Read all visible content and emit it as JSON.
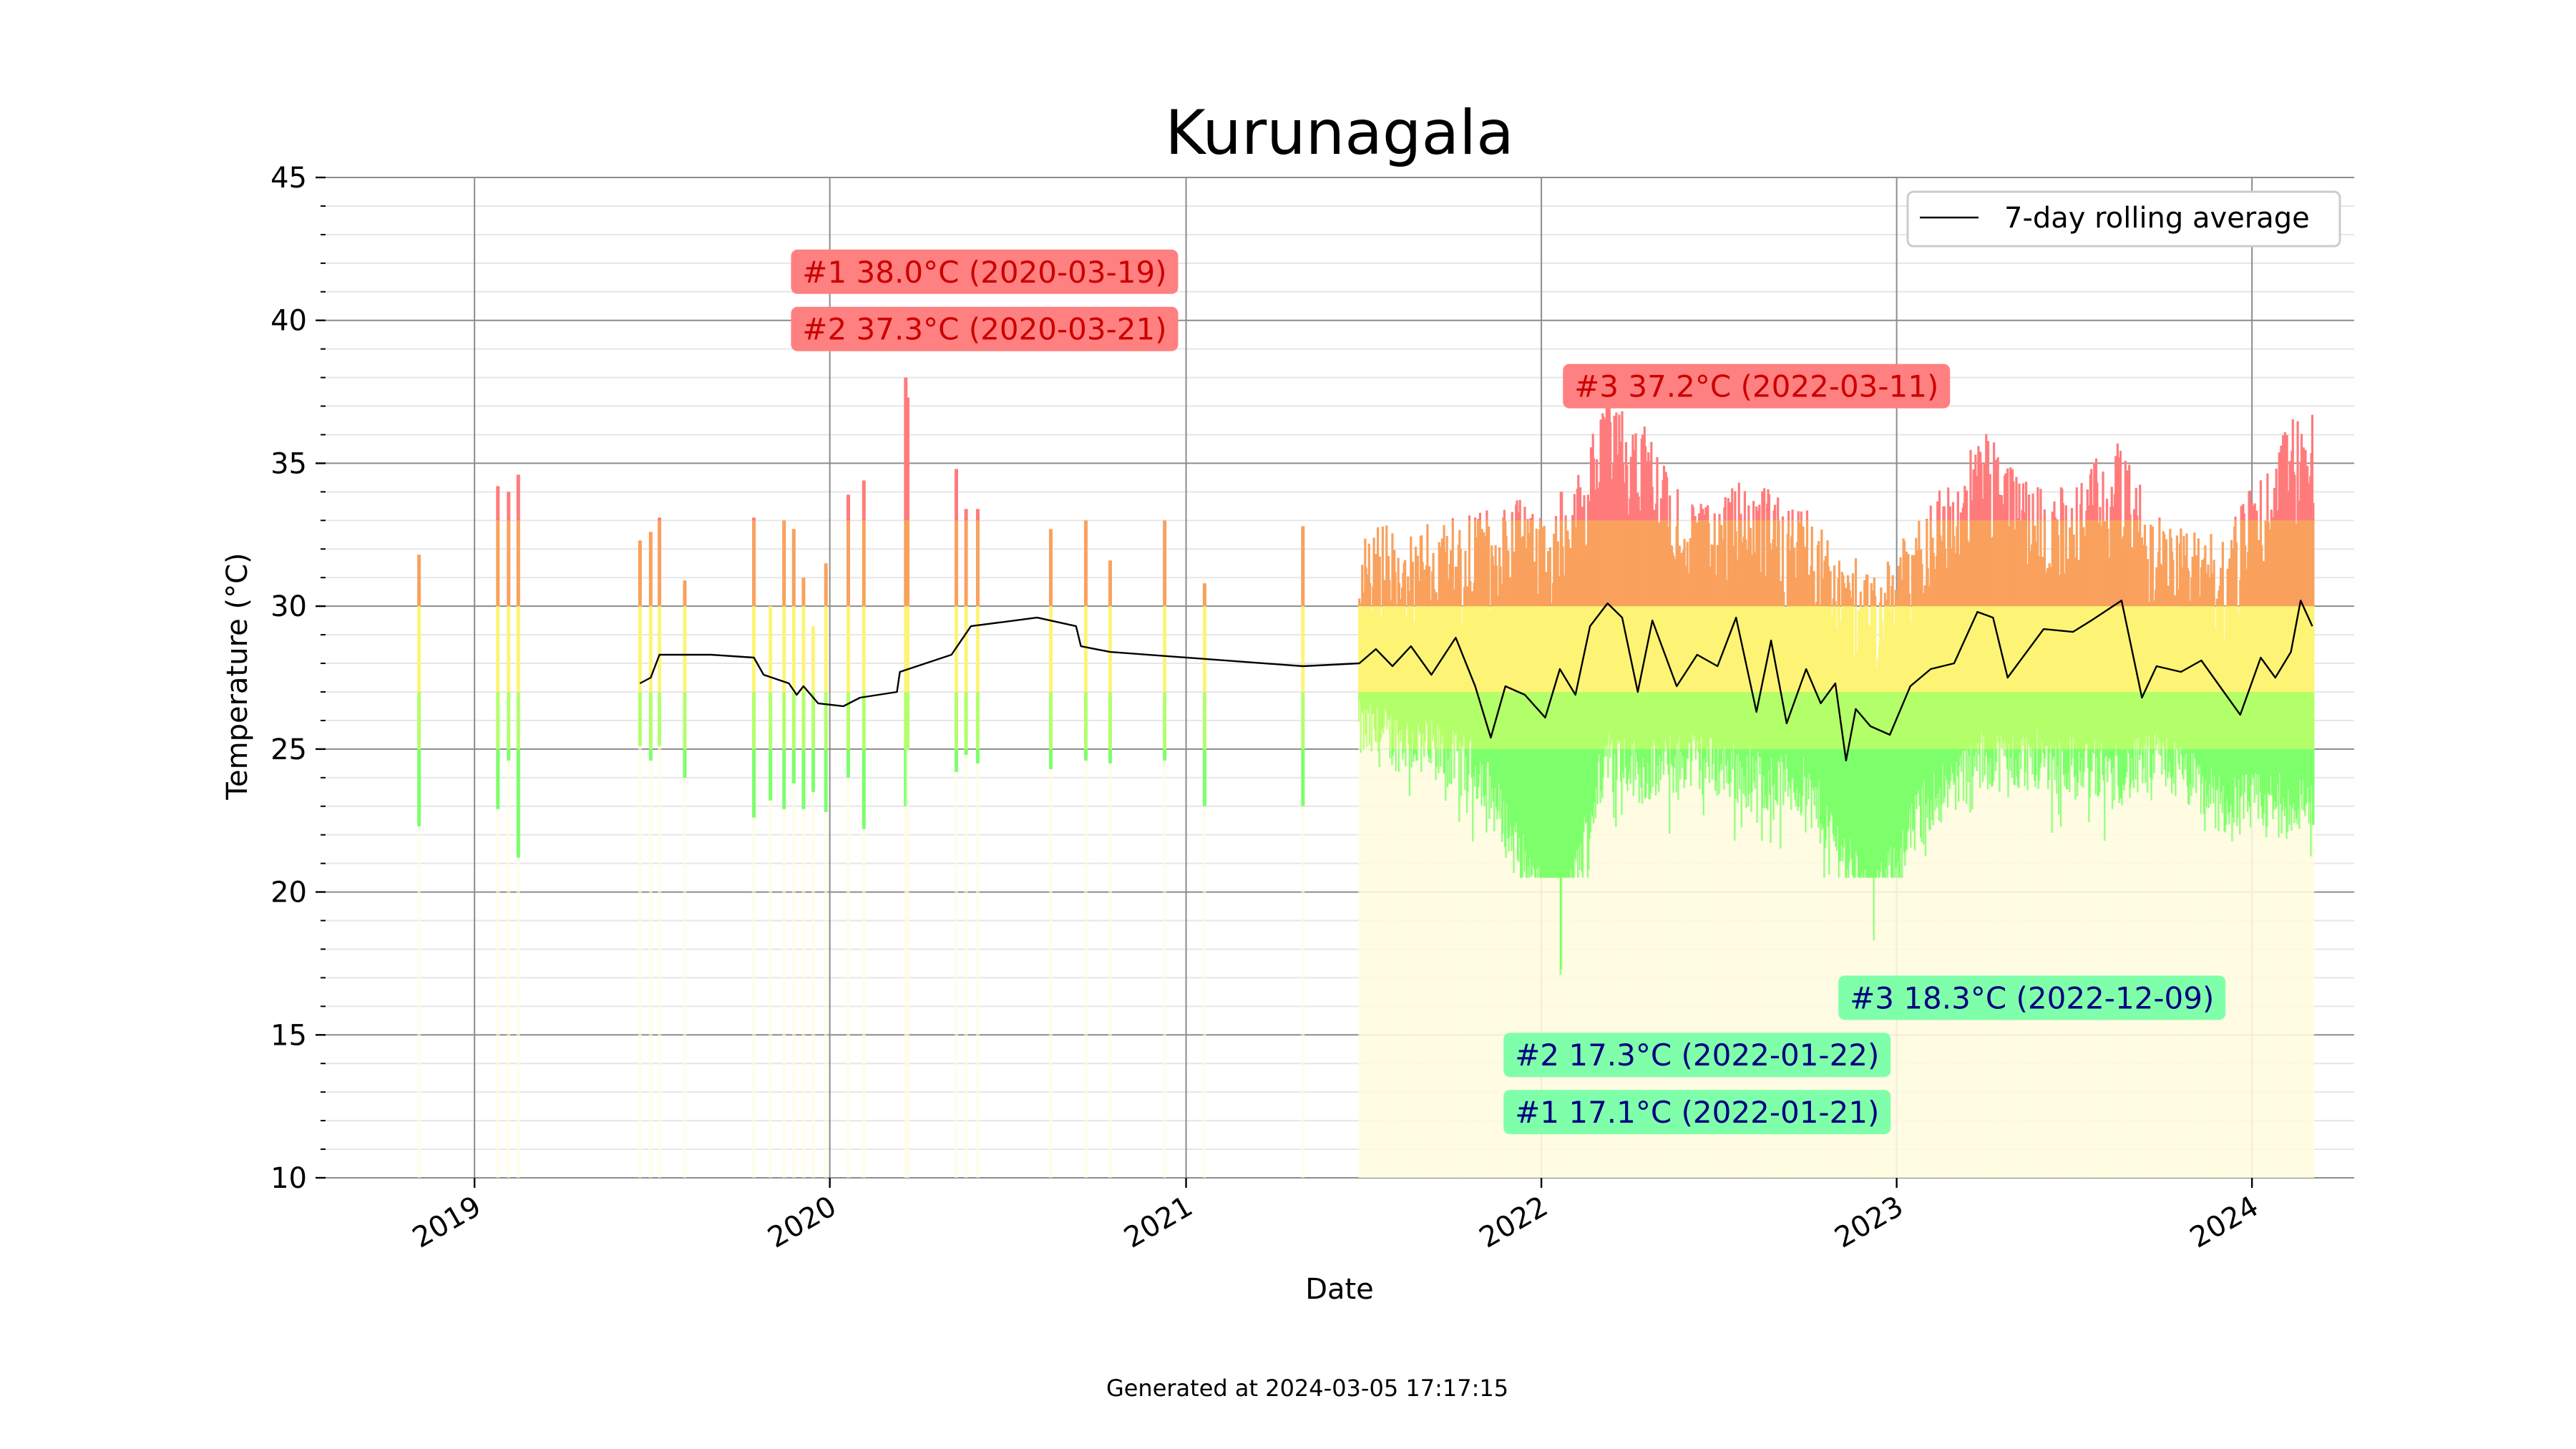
{
  "footer": "Generated at 2024-03-05 17:17:15",
  "colors": {
    "hot": "#ff7b7b",
    "warm": "#f9a15d",
    "mild": "#fdf476",
    "cool": "#b3ff6a",
    "cold": "#7cff6a",
    "rolling_line": "#000000",
    "hot_box": "#ff8080",
    "hot_text": "#cc0000",
    "cold_box": "#80ffaa",
    "cold_text": "#000080",
    "grid_major": "#8c8c8c",
    "grid_minor": "#e6e6e6"
  },
  "chart_data": {
    "type": "bar",
    "title": "Kurunagala",
    "xlabel": "Date",
    "ylabel": "Temperature (°C)",
    "ylim": [
      10,
      45
    ],
    "xlim": [
      "2018-08-01",
      "2024-04-15"
    ],
    "yticks": [
      10,
      15,
      20,
      25,
      30,
      35,
      40,
      45
    ],
    "xticks": [
      "2019",
      "2020",
      "2021",
      "2022",
      "2023",
      "2024"
    ],
    "grid": true,
    "legend": {
      "placement": "top-right",
      "entries": [
        "7-day rolling average"
      ]
    },
    "series": [
      {
        "name": "7-day rolling average",
        "kind": "line",
        "points": [
          [
            "2019-06-20",
            27.3
          ],
          [
            "2019-07-01",
            27.5
          ],
          [
            "2019-07-10",
            28.3
          ],
          [
            "2019-09-01",
            28.3
          ],
          [
            "2019-10-15",
            28.2
          ],
          [
            "2019-10-25",
            27.6
          ],
          [
            "2019-11-20",
            27.3
          ],
          [
            "2019-11-28",
            26.9
          ],
          [
            "2019-12-05",
            27.2
          ],
          [
            "2019-12-20",
            26.6
          ],
          [
            "2020-01-15",
            26.5
          ],
          [
            "2020-02-01",
            26.8
          ],
          [
            "2020-03-10",
            27.0
          ],
          [
            "2020-03-13",
            27.7
          ],
          [
            "2020-05-05",
            28.3
          ],
          [
            "2020-05-25",
            29.3
          ],
          [
            "2020-08-01",
            29.6
          ],
          [
            "2020-09-10",
            29.3
          ],
          [
            "2020-09-15",
            28.6
          ],
          [
            "2020-10-15",
            28.4
          ],
          [
            "2021-05-01",
            27.9
          ],
          [
            "2021-06-28",
            28.0
          ],
          [
            "2021-07-15",
            28.5
          ],
          [
            "2021-08-01",
            27.9
          ],
          [
            "2021-08-20",
            28.6
          ],
          [
            "2021-09-10",
            27.6
          ],
          [
            "2021-10-05",
            28.9
          ],
          [
            "2021-10-25",
            27.2
          ],
          [
            "2021-11-10",
            25.4
          ],
          [
            "2021-11-25",
            27.2
          ],
          [
            "2021-12-15",
            26.9
          ],
          [
            "2022-01-05",
            26.1
          ],
          [
            "2022-01-20",
            27.8
          ],
          [
            "2022-02-05",
            26.9
          ],
          [
            "2022-02-20",
            29.3
          ],
          [
            "2022-03-10",
            30.1
          ],
          [
            "2022-03-25",
            29.6
          ],
          [
            "2022-04-10",
            27.0
          ],
          [
            "2022-04-25",
            29.5
          ],
          [
            "2022-05-20",
            27.2
          ],
          [
            "2022-06-10",
            28.3
          ],
          [
            "2022-07-01",
            27.9
          ],
          [
            "2022-07-20",
            29.6
          ],
          [
            "2022-08-10",
            26.3
          ],
          [
            "2022-08-25",
            28.8
          ],
          [
            "2022-09-10",
            25.9
          ],
          [
            "2022-09-30",
            27.8
          ],
          [
            "2022-10-15",
            26.6
          ],
          [
            "2022-10-30",
            27.3
          ],
          [
            "2022-11-10",
            24.6
          ],
          [
            "2022-11-20",
            26.4
          ],
          [
            "2022-12-05",
            25.8
          ],
          [
            "2022-12-25",
            25.5
          ],
          [
            "2023-01-15",
            27.2
          ],
          [
            "2023-02-05",
            27.8
          ],
          [
            "2023-03-01",
            28.0
          ],
          [
            "2023-03-25",
            29.8
          ],
          [
            "2023-04-10",
            29.6
          ],
          [
            "2023-04-25",
            27.5
          ],
          [
            "2023-06-01",
            29.2
          ],
          [
            "2023-07-01",
            29.1
          ],
          [
            "2023-07-20",
            29.5
          ],
          [
            "2023-08-20",
            30.2
          ],
          [
            "2023-09-10",
            26.8
          ],
          [
            "2023-09-25",
            27.9
          ],
          [
            "2023-10-20",
            27.7
          ],
          [
            "2023-11-10",
            28.1
          ],
          [
            "2023-12-01",
            27.1
          ],
          [
            "2023-12-20",
            26.2
          ],
          [
            "2024-01-10",
            28.2
          ],
          [
            "2024-01-25",
            27.5
          ],
          [
            "2024-02-10",
            28.4
          ],
          [
            "2024-02-20",
            30.2
          ],
          [
            "2024-03-03",
            29.3
          ]
        ]
      }
    ],
    "daily_ranges": {
      "kind": "vertical bars (daily min to max)",
      "sparse_days": [
        [
          "2018-11-05",
          22.3,
          31.8
        ],
        [
          "2019-01-25",
          22.9,
          34.2
        ],
        [
          "2019-02-05",
          24.6,
          34.0
        ],
        [
          "2019-02-15",
          21.2,
          34.6
        ],
        [
          "2019-06-20",
          25.1,
          32.3
        ],
        [
          "2019-07-01",
          24.6,
          32.6
        ],
        [
          "2019-07-10",
          25.1,
          33.1
        ],
        [
          "2019-08-05",
          24.0,
          30.9
        ],
        [
          "2019-10-15",
          22.6,
          33.1
        ],
        [
          "2019-11-01",
          23.2,
          30.0
        ],
        [
          "2019-11-15",
          22.9,
          33.0
        ],
        [
          "2019-11-25",
          23.8,
          32.7
        ],
        [
          "2019-12-05",
          22.9,
          31.0
        ],
        [
          "2019-12-15",
          23.5,
          29.3
        ],
        [
          "2019-12-28",
          22.8,
          31.5
        ],
        [
          "2020-01-20",
          24.0,
          33.9
        ],
        [
          "2020-02-05",
          22.2,
          34.4
        ],
        [
          "2020-03-19",
          23.0,
          38.0
        ],
        [
          "2020-03-21",
          25.0,
          37.3
        ],
        [
          "2020-05-10",
          24.2,
          34.8
        ],
        [
          "2020-05-20",
          24.8,
          33.4
        ],
        [
          "2020-06-01",
          24.5,
          33.4
        ],
        [
          "2020-08-15",
          24.3,
          32.7
        ],
        [
          "2020-09-20",
          24.6,
          33.0
        ],
        [
          "2020-10-15",
          24.5,
          31.6
        ],
        [
          "2020-12-10",
          24.6,
          33.0
        ],
        [
          "2021-01-20",
          23.0,
          30.8
        ],
        [
          "2021-05-01",
          23.0,
          32.8
        ]
      ],
      "continuous_period": [
        "2021-06-28",
        "2024-03-04"
      ],
      "continuous_envelope": [
        [
          "2021-07-01",
          24.5,
          32.8
        ],
        [
          "2021-09-01",
          24.0,
          33.0
        ],
        [
          "2021-11-01",
          23.0,
          33.5
        ],
        [
          "2022-01-21",
          17.1,
          34.0
        ],
        [
          "2022-01-22",
          17.3,
          34.0
        ],
        [
          "2022-03-11",
          24.0,
          37.2
        ],
        [
          "2022-04-15",
          23.0,
          36.5
        ],
        [
          "2022-06-01",
          23.5,
          33.5
        ],
        [
          "2022-08-01",
          23.0,
          34.5
        ],
        [
          "2022-10-01",
          22.5,
          33.5
        ],
        [
          "2022-12-09",
          18.3,
          31.0
        ],
        [
          "2023-02-01",
          22.0,
          33.5
        ],
        [
          "2023-04-01",
          23.5,
          36.2
        ],
        [
          "2023-06-01",
          23.5,
          34.0
        ],
        [
          "2023-08-20",
          23.0,
          35.8
        ],
        [
          "2023-10-01",
          23.5,
          33.0
        ],
        [
          "2023-12-01",
          22.0,
          32.5
        ],
        [
          "2024-02-20",
          22.0,
          37.0
        ]
      ]
    },
    "annotations": [
      {
        "text": "#1 38.0°C (2020-03-19)",
        "kind": "hot",
        "anchor_date": "2020-06-08",
        "anchor_temp": 41.7
      },
      {
        "text": "#2 37.3°C (2020-03-21)",
        "kind": "hot",
        "anchor_date": "2020-06-08",
        "anchor_temp": 39.7
      },
      {
        "text": "#3 37.2°C (2022-03-11)",
        "kind": "hot",
        "anchor_date": "2022-08-10",
        "anchor_temp": 37.7
      },
      {
        "text": "#3 18.3°C (2022-12-09)",
        "kind": "cold",
        "anchor_date": "2023-05-20",
        "anchor_temp": 16.3
      },
      {
        "text": "#2 17.3°C (2022-01-22)",
        "kind": "cold",
        "anchor_date": "2022-06-10",
        "anchor_temp": 14.3
      },
      {
        "text": "#1 17.1°C (2022-01-21)",
        "kind": "cold",
        "anchor_date": "2022-06-10",
        "anchor_temp": 12.3
      }
    ]
  }
}
